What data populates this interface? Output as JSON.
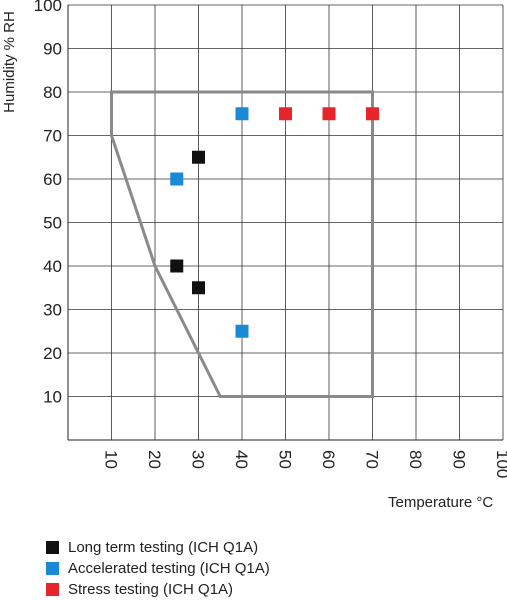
{
  "chart_data": {
    "type": "scatter",
    "xlabel": "Temperature °C",
    "ylabel": "Humidity % RH",
    "xlim": [
      0,
      100
    ],
    "ylim": [
      0,
      100
    ],
    "x_ticks": [
      10,
      20,
      30,
      40,
      50,
      60,
      70,
      80,
      90,
      100
    ],
    "y_ticks": [
      10,
      20,
      30,
      40,
      50,
      60,
      70,
      80,
      90,
      100
    ],
    "grid": true,
    "legend_position": "bottom-left",
    "series": [
      {
        "name": "Long term testing (ICH Q1A)",
        "color": "#111111",
        "points": [
          {
            "x": 30,
            "y": 65
          },
          {
            "x": 25,
            "y": 40
          },
          {
            "x": 30,
            "y": 35
          }
        ]
      },
      {
        "name": "Accelerated testing (ICH Q1A)",
        "color": "#1a8ad4",
        "points": [
          {
            "x": 40,
            "y": 75
          },
          {
            "x": 25,
            "y": 60
          },
          {
            "x": 40,
            "y": 25
          }
        ]
      },
      {
        "name": "Stress testing (ICH Q1A)",
        "color": "#e8242b",
        "points": [
          {
            "x": 50,
            "y": 75
          },
          {
            "x": 60,
            "y": 75
          },
          {
            "x": 70,
            "y": 75
          }
        ]
      }
    ],
    "region": {
      "color": "#8a8a8a",
      "vertices": [
        [
          10,
          80
        ],
        [
          70,
          80
        ],
        [
          70,
          10
        ],
        [
          35,
          10
        ],
        [
          20,
          40
        ],
        [
          10,
          70
        ]
      ]
    }
  }
}
